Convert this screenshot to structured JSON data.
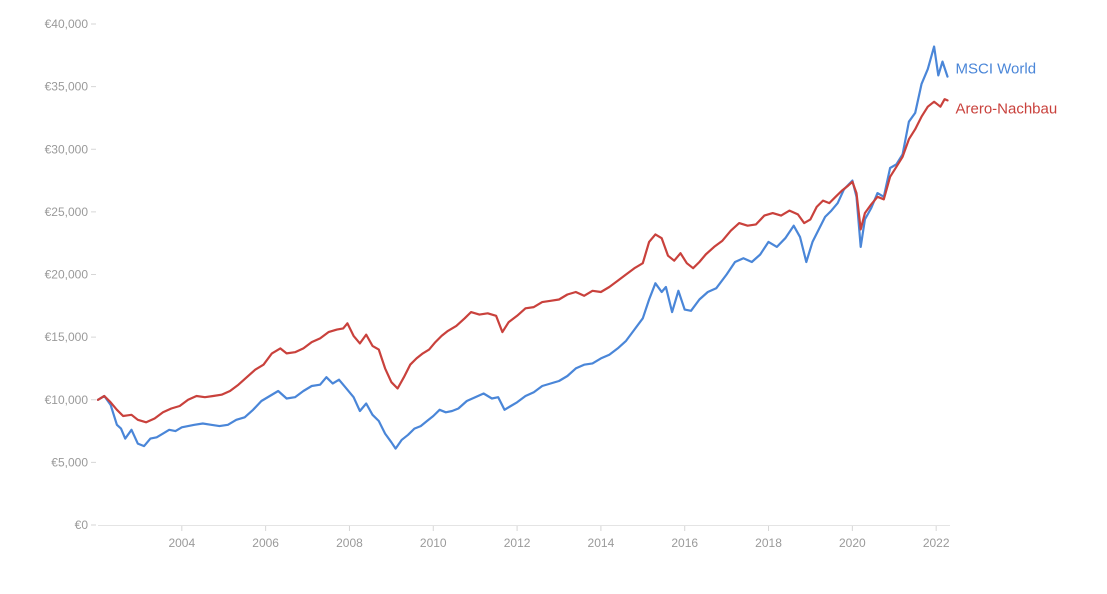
{
  "chart_data": {
    "type": "line",
    "title": "",
    "xlabel": "",
    "ylabel": "",
    "xlim": [
      2002.0,
      2022.33
    ],
    "ylim": [
      0,
      40000
    ],
    "grid": false,
    "legend": "right, at line ends",
    "y_ticks": [
      0,
      5000,
      10000,
      15000,
      20000,
      25000,
      30000,
      35000,
      40000
    ],
    "y_tick_labels": [
      "€0",
      "€5,000",
      "€10,000",
      "€15,000",
      "€20,000",
      "€25,000",
      "€30,000",
      "€35,000",
      "€40,000"
    ],
    "x_ticks": [
      2004,
      2006,
      2008,
      2010,
      2012,
      2014,
      2016,
      2018,
      2020,
      2022
    ],
    "x_tick_labels": [
      "2004",
      "2006",
      "2008",
      "2010",
      "2012",
      "2014",
      "2016",
      "2018",
      "2020",
      "2022"
    ],
    "series": [
      {
        "name": "MSCI World",
        "color": "#4a86d8",
        "points": [
          [
            2002.0,
            10000
          ],
          [
            2002.15,
            10300
          ],
          [
            2002.3,
            9600
          ],
          [
            2002.45,
            8000
          ],
          [
            2002.55,
            7700
          ],
          [
            2002.65,
            6900
          ],
          [
            2002.8,
            7600
          ],
          [
            2002.95,
            6500
          ],
          [
            2003.1,
            6300
          ],
          [
            2003.25,
            6900
          ],
          [
            2003.4,
            7000
          ],
          [
            2003.55,
            7300
          ],
          [
            2003.7,
            7600
          ],
          [
            2003.85,
            7500
          ],
          [
            2004.0,
            7800
          ],
          [
            2004.3,
            8000
          ],
          [
            2004.5,
            8100
          ],
          [
            2004.7,
            8000
          ],
          [
            2004.9,
            7900
          ],
          [
            2005.1,
            8000
          ],
          [
            2005.3,
            8400
          ],
          [
            2005.5,
            8600
          ],
          [
            2005.7,
            9200
          ],
          [
            2005.9,
            9900
          ],
          [
            2006.1,
            10300
          ],
          [
            2006.3,
            10700
          ],
          [
            2006.5,
            10100
          ],
          [
            2006.7,
            10200
          ],
          [
            2006.9,
            10700
          ],
          [
            2007.1,
            11100
          ],
          [
            2007.3,
            11200
          ],
          [
            2007.45,
            11800
          ],
          [
            2007.6,
            11300
          ],
          [
            2007.75,
            11600
          ],
          [
            2007.9,
            11000
          ],
          [
            2008.1,
            10200
          ],
          [
            2008.25,
            9100
          ],
          [
            2008.4,
            9700
          ],
          [
            2008.55,
            8800
          ],
          [
            2008.7,
            8300
          ],
          [
            2008.85,
            7300
          ],
          [
            2009.0,
            6600
          ],
          [
            2009.1,
            6100
          ],
          [
            2009.25,
            6800
          ],
          [
            2009.4,
            7200
          ],
          [
            2009.55,
            7700
          ],
          [
            2009.7,
            7900
          ],
          [
            2009.85,
            8300
          ],
          [
            2010.0,
            8700
          ],
          [
            2010.15,
            9200
          ],
          [
            2010.3,
            9000
          ],
          [
            2010.45,
            9100
          ],
          [
            2010.6,
            9300
          ],
          [
            2010.8,
            9900
          ],
          [
            2011.0,
            10200
          ],
          [
            2011.2,
            10500
          ],
          [
            2011.4,
            10100
          ],
          [
            2011.55,
            10200
          ],
          [
            2011.7,
            9200
          ],
          [
            2011.85,
            9500
          ],
          [
            2012.0,
            9800
          ],
          [
            2012.2,
            10300
          ],
          [
            2012.4,
            10600
          ],
          [
            2012.6,
            11100
          ],
          [
            2012.8,
            11300
          ],
          [
            2013.0,
            11500
          ],
          [
            2013.2,
            11900
          ],
          [
            2013.4,
            12500
          ],
          [
            2013.6,
            12800
          ],
          [
            2013.8,
            12900
          ],
          [
            2014.0,
            13300
          ],
          [
            2014.2,
            13600
          ],
          [
            2014.4,
            14100
          ],
          [
            2014.6,
            14700
          ],
          [
            2014.8,
            15600
          ],
          [
            2015.0,
            16500
          ],
          [
            2015.15,
            18000
          ],
          [
            2015.3,
            19300
          ],
          [
            2015.45,
            18600
          ],
          [
            2015.55,
            19000
          ],
          [
            2015.7,
            17000
          ],
          [
            2015.85,
            18700
          ],
          [
            2016.0,
            17200
          ],
          [
            2016.15,
            17100
          ],
          [
            2016.35,
            18000
          ],
          [
            2016.55,
            18600
          ],
          [
            2016.75,
            18900
          ],
          [
            2017.0,
            20000
          ],
          [
            2017.2,
            21000
          ],
          [
            2017.4,
            21300
          ],
          [
            2017.6,
            21000
          ],
          [
            2017.8,
            21600
          ],
          [
            2018.0,
            22600
          ],
          [
            2018.2,
            22200
          ],
          [
            2018.4,
            22900
          ],
          [
            2018.6,
            23900
          ],
          [
            2018.75,
            23000
          ],
          [
            2018.9,
            21000
          ],
          [
            2019.05,
            22600
          ],
          [
            2019.2,
            23600
          ],
          [
            2019.35,
            24600
          ],
          [
            2019.5,
            25100
          ],
          [
            2019.65,
            25700
          ],
          [
            2019.8,
            26800
          ],
          [
            2020.0,
            27500
          ],
          [
            2020.1,
            26200
          ],
          [
            2020.2,
            22200
          ],
          [
            2020.3,
            24400
          ],
          [
            2020.45,
            25300
          ],
          [
            2020.6,
            26500
          ],
          [
            2020.75,
            26200
          ],
          [
            2020.9,
            28500
          ],
          [
            2021.05,
            28800
          ],
          [
            2021.2,
            29600
          ],
          [
            2021.35,
            32200
          ],
          [
            2021.5,
            32900
          ],
          [
            2021.65,
            35200
          ],
          [
            2021.8,
            36400
          ],
          [
            2021.95,
            38200
          ],
          [
            2022.05,
            35900
          ],
          [
            2022.15,
            37000
          ],
          [
            2022.27,
            35800
          ]
        ]
      },
      {
        "name": "Arero-Nachbau",
        "color": "#c9413c",
        "points": [
          [
            2002.0,
            10000
          ],
          [
            2002.15,
            10300
          ],
          [
            2002.3,
            9800
          ],
          [
            2002.45,
            9200
          ],
          [
            2002.6,
            8700
          ],
          [
            2002.8,
            8800
          ],
          [
            2002.95,
            8400
          ],
          [
            2003.15,
            8200
          ],
          [
            2003.35,
            8500
          ],
          [
            2003.55,
            9000
          ],
          [
            2003.75,
            9300
          ],
          [
            2003.95,
            9500
          ],
          [
            2004.15,
            10000
          ],
          [
            2004.35,
            10300
          ],
          [
            2004.55,
            10200
          ],
          [
            2004.75,
            10300
          ],
          [
            2004.95,
            10400
          ],
          [
            2005.15,
            10700
          ],
          [
            2005.35,
            11200
          ],
          [
            2005.55,
            11800
          ],
          [
            2005.75,
            12400
          ],
          [
            2005.95,
            12800
          ],
          [
            2006.15,
            13700
          ],
          [
            2006.35,
            14100
          ],
          [
            2006.5,
            13700
          ],
          [
            2006.7,
            13800
          ],
          [
            2006.9,
            14100
          ],
          [
            2007.1,
            14600
          ],
          [
            2007.3,
            14900
          ],
          [
            2007.5,
            15400
          ],
          [
            2007.7,
            15600
          ],
          [
            2007.85,
            15700
          ],
          [
            2007.95,
            16100
          ],
          [
            2008.1,
            15100
          ],
          [
            2008.25,
            14500
          ],
          [
            2008.4,
            15200
          ],
          [
            2008.55,
            14300
          ],
          [
            2008.7,
            14000
          ],
          [
            2008.85,
            12500
          ],
          [
            2009.0,
            11400
          ],
          [
            2009.15,
            10900
          ],
          [
            2009.3,
            11800
          ],
          [
            2009.45,
            12800
          ],
          [
            2009.6,
            13300
          ],
          [
            2009.75,
            13700
          ],
          [
            2009.9,
            14000
          ],
          [
            2010.05,
            14600
          ],
          [
            2010.2,
            15100
          ],
          [
            2010.35,
            15500
          ],
          [
            2010.55,
            15900
          ],
          [
            2010.75,
            16500
          ],
          [
            2010.9,
            17000
          ],
          [
            2011.1,
            16800
          ],
          [
            2011.3,
            16900
          ],
          [
            2011.5,
            16700
          ],
          [
            2011.65,
            15400
          ],
          [
            2011.8,
            16200
          ],
          [
            2012.0,
            16700
          ],
          [
            2012.2,
            17300
          ],
          [
            2012.4,
            17400
          ],
          [
            2012.6,
            17800
          ],
          [
            2012.8,
            17900
          ],
          [
            2013.0,
            18000
          ],
          [
            2013.2,
            18400
          ],
          [
            2013.4,
            18600
          ],
          [
            2013.6,
            18300
          ],
          [
            2013.8,
            18700
          ],
          [
            2014.0,
            18600
          ],
          [
            2014.2,
            19000
          ],
          [
            2014.4,
            19500
          ],
          [
            2014.6,
            20000
          ],
          [
            2014.8,
            20500
          ],
          [
            2015.0,
            20900
          ],
          [
            2015.15,
            22600
          ],
          [
            2015.3,
            23200
          ],
          [
            2015.45,
            22900
          ],
          [
            2015.6,
            21500
          ],
          [
            2015.75,
            21100
          ],
          [
            2015.9,
            21700
          ],
          [
            2016.05,
            20900
          ],
          [
            2016.2,
            20500
          ],
          [
            2016.35,
            21000
          ],
          [
            2016.5,
            21600
          ],
          [
            2016.7,
            22200
          ],
          [
            2016.9,
            22700
          ],
          [
            2017.1,
            23500
          ],
          [
            2017.3,
            24100
          ],
          [
            2017.5,
            23900
          ],
          [
            2017.7,
            24000
          ],
          [
            2017.9,
            24700
          ],
          [
            2018.1,
            24900
          ],
          [
            2018.3,
            24700
          ],
          [
            2018.5,
            25100
          ],
          [
            2018.7,
            24800
          ],
          [
            2018.85,
            24100
          ],
          [
            2019.0,
            24400
          ],
          [
            2019.15,
            25400
          ],
          [
            2019.3,
            25900
          ],
          [
            2019.45,
            25700
          ],
          [
            2019.6,
            26200
          ],
          [
            2019.75,
            26700
          ],
          [
            2019.9,
            27100
          ],
          [
            2020.0,
            27400
          ],
          [
            2020.1,
            26500
          ],
          [
            2020.2,
            23600
          ],
          [
            2020.3,
            24900
          ],
          [
            2020.45,
            25600
          ],
          [
            2020.6,
            26200
          ],
          [
            2020.75,
            26000
          ],
          [
            2020.9,
            27800
          ],
          [
            2021.05,
            28600
          ],
          [
            2021.2,
            29400
          ],
          [
            2021.35,
            30800
          ],
          [
            2021.5,
            31600
          ],
          [
            2021.65,
            32600
          ],
          [
            2021.8,
            33400
          ],
          [
            2021.95,
            33800
          ],
          [
            2022.1,
            33400
          ],
          [
            2022.2,
            34000
          ],
          [
            2022.27,
            33900
          ]
        ]
      }
    ]
  }
}
